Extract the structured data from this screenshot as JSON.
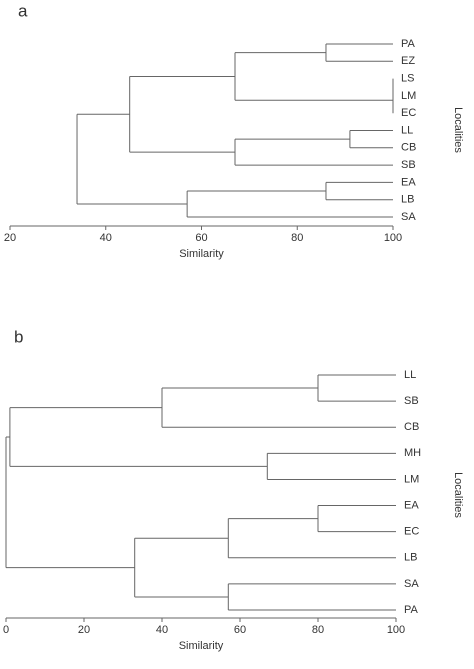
{
  "chart_data": [
    {
      "type": "dendrogram",
      "title": "a",
      "xlabel": "Similarity",
      "ylabel": "Localities",
      "leaves": [
        "PA",
        "EZ",
        "LS",
        "LM",
        "EC",
        "LL",
        "CB",
        "SB",
        "EA",
        "LB",
        "SA"
      ],
      "merges": [
        {
          "children": [
            0,
            1
          ],
          "value": 86
        },
        {
          "children": [
            2,
            3
          ],
          "value": 100
        },
        {
          "children": [
            12,
            4
          ],
          "value": 100
        },
        {
          "children": [
            11,
            13
          ],
          "value": 67
        },
        {
          "children": [
            5,
            6
          ],
          "value": 91
        },
        {
          "children": [
            15,
            7
          ],
          "value": 67
        },
        {
          "children": [
            14,
            16
          ],
          "value": 45
        },
        {
          "children": [
            8,
            9
          ],
          "value": 86
        },
        {
          "children": [
            18,
            10
          ],
          "value": 57
        },
        {
          "children": [
            17,
            19
          ],
          "value": 34
        }
      ],
      "xlim": [
        20,
        100
      ],
      "xticks": [
        20,
        40,
        60,
        80,
        100
      ]
    },
    {
      "type": "dendrogram",
      "title": "b",
      "xlabel": "Similarity",
      "ylabel": "Localities",
      "leaves": [
        "LL",
        "SB",
        "CB",
        "MH",
        "LM",
        "EA",
        "EC",
        "LB",
        "SA",
        "PA"
      ],
      "merges": [
        {
          "children": [
            0,
            1
          ],
          "value": 80
        },
        {
          "children": [
            10,
            2
          ],
          "value": 40
        },
        {
          "children": [
            3,
            4
          ],
          "value": 67
        },
        {
          "children": [
            11,
            12
          ],
          "value": 1
        },
        {
          "children": [
            5,
            6
          ],
          "value": 80
        },
        {
          "children": [
            14,
            7
          ],
          "value": 57
        },
        {
          "children": [
            8,
            9
          ],
          "value": 57
        },
        {
          "children": [
            15,
            16
          ],
          "value": 33
        },
        {
          "children": [
            13,
            17
          ],
          "value": 0
        }
      ],
      "xlim": [
        0,
        100
      ],
      "xticks": [
        0,
        20,
        40,
        60,
        80,
        100
      ]
    }
  ]
}
